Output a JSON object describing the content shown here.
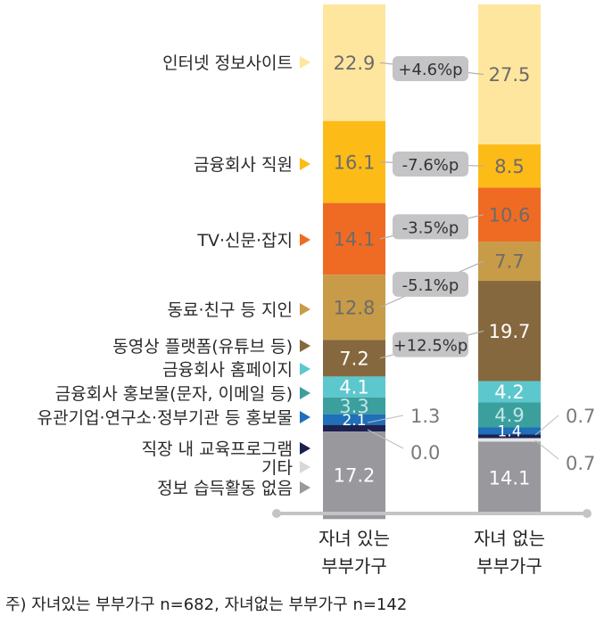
{
  "chart_data": {
    "type": "bar",
    "stacked": true,
    "orientation": "vertical",
    "total_percent": 100,
    "categories": [
      "자녀 있는 부부가구",
      "자녀 없는 부부가구"
    ],
    "series": [
      {
        "name": "인터넷 정보사이트",
        "color": "#FFE69E",
        "values": [
          22.9,
          27.5
        ],
        "change": "+4.6%p"
      },
      {
        "name": "금융회사 직원",
        "color": "#FDBB17",
        "values": [
          16.1,
          8.5
        ],
        "change": "-7.6%p"
      },
      {
        "name": "TV·신문·잡지",
        "color": "#EF6B24",
        "values": [
          14.1,
          10.6
        ],
        "change": "-3.5%p"
      },
      {
        "name": "동료·친구 등 지인",
        "color": "#C79B48",
        "values": [
          12.8,
          7.7
        ],
        "change": "-5.1%p"
      },
      {
        "name": "동영상 플랫폼(유튜브 등)",
        "color": "#86683F",
        "values": [
          7.2,
          19.7
        ],
        "change": "+12.5%p"
      },
      {
        "name": "금융회사 홈페이지",
        "color": "#5CC8CD",
        "values": [
          4.1,
          4.2
        ]
      },
      {
        "name": "금융회사 홍보물(문자, 이메일 등)",
        "color": "#3B9F9E",
        "values": [
          3.3,
          4.9
        ]
      },
      {
        "name": "유관기업·연구소·정부기관 등 홍보물",
        "color": "#1F6FB9",
        "values": [
          2.1,
          1.4
        ]
      },
      {
        "name": "직장 내 교육프로그램",
        "color": "#1B2150",
        "values": [
          1.3,
          0.7
        ]
      },
      {
        "name": "기타",
        "color": "#E3E4E5",
        "values": [
          0.0,
          0.7
        ]
      },
      {
        "name": "정보 습득활동 없음",
        "color": "#98989D",
        "values": [
          17.2,
          14.1
        ]
      }
    ],
    "bar_label_texts": [
      [
        "22.9",
        "16.1",
        "14.1",
        "12.8",
        "7.2",
        "4.1",
        "3.3",
        "2.1",
        "1.3",
        "0.0",
        "17.2"
      ],
      [
        "27.5",
        "8.5",
        "10.6",
        "7.7",
        "19.7",
        "4.2",
        "4.9",
        "1.4",
        "0.7",
        "0.7",
        "14.1"
      ]
    ],
    "category_lines": [
      [
        "자녀 있는",
        "부부가구"
      ],
      [
        "자녀 없는",
        "부부가구"
      ]
    ],
    "grid": false,
    "legend": "left"
  },
  "footnote": "주) 자녀있는 부부가구 n=682, 자녀없는 부부가구 n=142"
}
